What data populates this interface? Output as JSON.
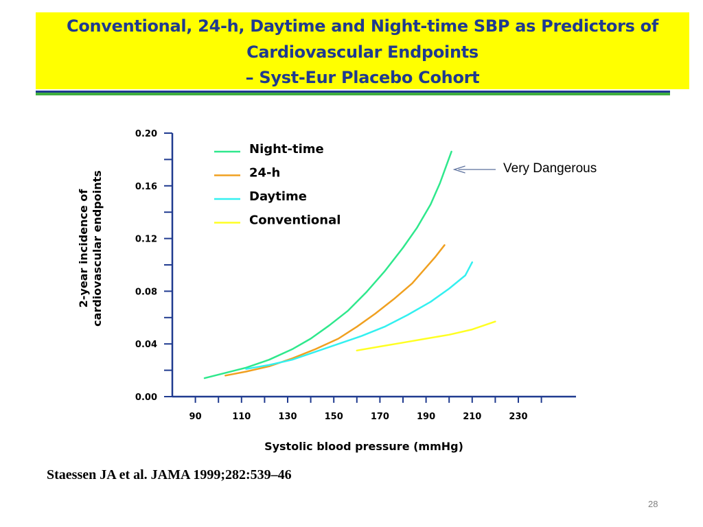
{
  "slide": {
    "title_lines": [
      "Conventional, 24-h, Daytime and Night-time SBP as Predictors of",
      "Cardiovascular Endpoints",
      "– Syst-Eur Placebo Cohort"
    ],
    "citation": "Staessen JA et al. JAMA 1999;282:539–46",
    "page_number": "28",
    "annotation": "Very Dangerous"
  },
  "chart_data": {
    "type": "line",
    "xlabel": "Systolic blood pressure (mmHg)",
    "ylabel_lines": [
      "2-year incidence of",
      "cardiovascular endpoints"
    ],
    "x_ticks": [
      90,
      110,
      130,
      150,
      170,
      190,
      210,
      230
    ],
    "y_ticks": [
      "0.00",
      "0.04",
      "0.08",
      "0.12",
      "0.16",
      "0.20"
    ],
    "xlim": [
      80,
      255
    ],
    "ylim": [
      0,
      0.2
    ],
    "grid": false,
    "legend_position": "top-left",
    "series": [
      {
        "name": "Night-time",
        "color": "#2ee88c",
        "points": [
          [
            94,
            0.014
          ],
          [
            103,
            0.018
          ],
          [
            112,
            0.022
          ],
          [
            122,
            0.028
          ],
          [
            132,
            0.036
          ],
          [
            140,
            0.044
          ],
          [
            148,
            0.054
          ],
          [
            156,
            0.065
          ],
          [
            164,
            0.079
          ],
          [
            172,
            0.095
          ],
          [
            180,
            0.113
          ],
          [
            186,
            0.128
          ],
          [
            192,
            0.146
          ],
          [
            196,
            0.162
          ],
          [
            201,
            0.186
          ]
        ]
      },
      {
        "name": "24-h",
        "color": "#f0a020",
        "points": [
          [
            103,
            0.016
          ],
          [
            112,
            0.019
          ],
          [
            122,
            0.023
          ],
          [
            132,
            0.029
          ],
          [
            142,
            0.036
          ],
          [
            152,
            0.044
          ],
          [
            160,
            0.053
          ],
          [
            168,
            0.063
          ],
          [
            176,
            0.074
          ],
          [
            184,
            0.086
          ],
          [
            190,
            0.098
          ],
          [
            194,
            0.106
          ],
          [
            198,
            0.115
          ]
        ]
      },
      {
        "name": "Daytime",
        "color": "#33f0f0",
        "points": [
          [
            112,
            0.021
          ],
          [
            122,
            0.024
          ],
          [
            132,
            0.028
          ],
          [
            142,
            0.034
          ],
          [
            152,
            0.04
          ],
          [
            162,
            0.046
          ],
          [
            172,
            0.053
          ],
          [
            182,
            0.062
          ],
          [
            192,
            0.072
          ],
          [
            200,
            0.082
          ],
          [
            207,
            0.092
          ],
          [
            210,
            0.102
          ]
        ]
      },
      {
        "name": "Conventional",
        "color": "#ffff22",
        "points": [
          [
            160,
            0.035
          ],
          [
            170,
            0.038
          ],
          [
            180,
            0.041
          ],
          [
            190,
            0.044
          ],
          [
            200,
            0.047
          ],
          [
            210,
            0.051
          ],
          [
            220,
            0.057
          ]
        ]
      }
    ]
  }
}
